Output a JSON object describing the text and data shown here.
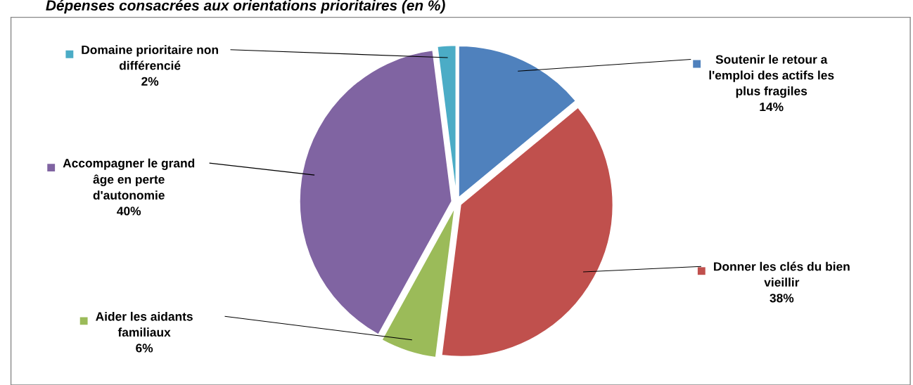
{
  "chart_data": {
    "type": "pie",
    "title": "Dépenses consacrées aux orientations prioritaires (en %)",
    "categories": [
      "Soutenir le retour a\nl'emploi des actifs les\nplus fragiles",
      "Donner les clés du bien\nvieillir",
      "Aider les aidants\nfamiliaux",
      "Accompagner le grand\nâge en perte\nd'autonomie",
      "Domaine prioritaire non\ndifférencié"
    ],
    "values": [
      14,
      38,
      6,
      40,
      2
    ],
    "value_labels": [
      "14%",
      "38%",
      "6%",
      "40%",
      "2%"
    ],
    "colors": [
      "#4f81bd",
      "#c0504d",
      "#9bbb59",
      "#8064a2",
      "#4bacc6"
    ],
    "legend": "center"
  }
}
